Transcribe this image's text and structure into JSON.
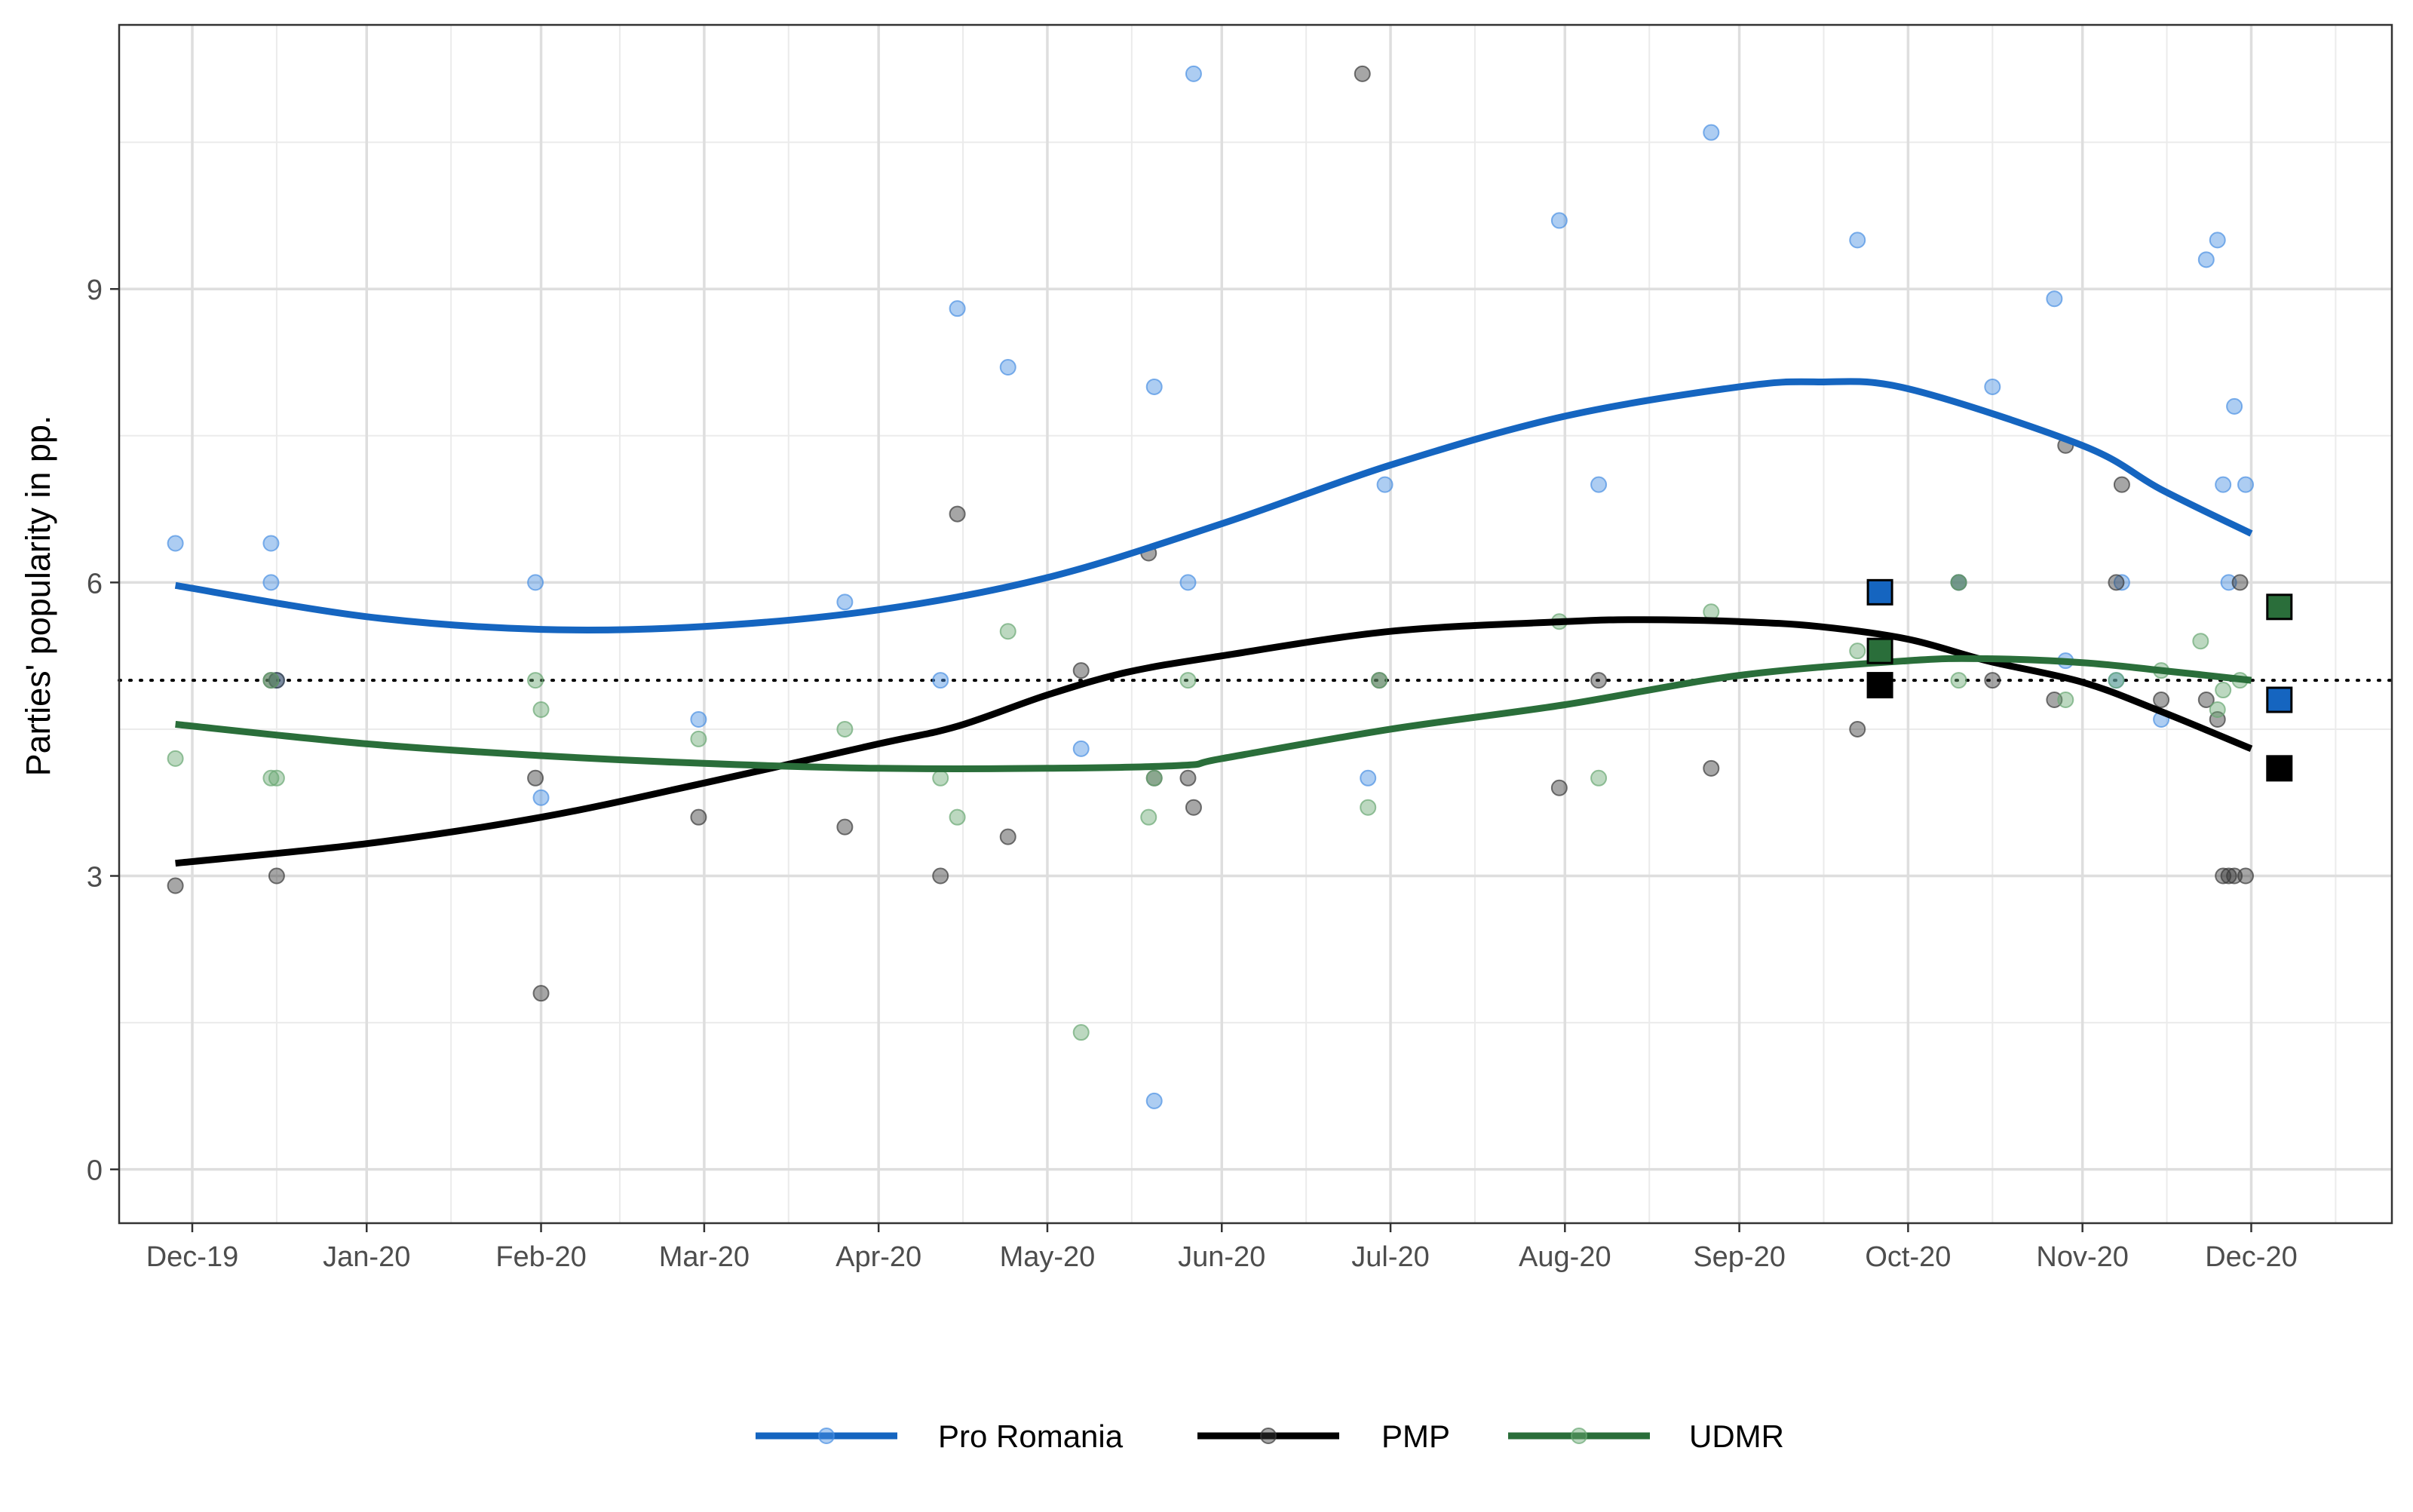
{
  "chart_data": {
    "type": "scatter",
    "title": "",
    "xlabel": "",
    "ylabel": "Parties' popularity in pp.",
    "x_ticks": [
      "Dec-19",
      "Jan-20",
      "Feb-20",
      "Mar-20",
      "Apr-20",
      "May-20",
      "Jun-20",
      "Jul-20",
      "Aug-20",
      "Sep-20",
      "Oct-20",
      "Nov-20",
      "Dec-20"
    ],
    "y_ticks": [
      0,
      3,
      6,
      9
    ],
    "xlim": [
      "2019-11-18",
      "2020-12-26"
    ],
    "ylim": [
      -0.55,
      11.7
    ],
    "grid": true,
    "legend_position": "bottom",
    "threshold_line": 5,
    "series": [
      {
        "name": "Pro Romania",
        "color": "#1565c0",
        "point_color": "#4a90e2",
        "points": [
          [
            "2019-11-28",
            6.4
          ],
          [
            "2019-12-15",
            6.0
          ],
          [
            "2019-12-15",
            6.4
          ],
          [
            "2019-12-16",
            5.0
          ],
          [
            "2020-01-31",
            6.0
          ],
          [
            "2020-02-01",
            3.8
          ],
          [
            "2020-02-29",
            4.6
          ],
          [
            "2020-03-26",
            5.8
          ],
          [
            "2020-04-12",
            5.0
          ],
          [
            "2020-04-15",
            8.8
          ],
          [
            "2020-04-24",
            8.2
          ],
          [
            "2020-05-07",
            4.3
          ],
          [
            "2020-05-20",
            8.0
          ],
          [
            "2020-05-20",
            0.7
          ],
          [
            "2020-05-26",
            6.0
          ],
          [
            "2020-05-27",
            11.2
          ],
          [
            "2020-06-27",
            4.0
          ],
          [
            "2020-06-30",
            7.0
          ],
          [
            "2020-07-31",
            9.7
          ],
          [
            "2020-08-07",
            7.0
          ],
          [
            "2020-08-27",
            10.6
          ],
          [
            "2020-09-22",
            9.5
          ],
          [
            "2020-10-10",
            6.0
          ],
          [
            "2020-10-16",
            8.0
          ],
          [
            "2020-10-27",
            8.9
          ],
          [
            "2020-10-29",
            5.2
          ],
          [
            "2020-11-07",
            5.0
          ],
          [
            "2020-11-08",
            6.0
          ],
          [
            "2020-11-15",
            4.6
          ],
          [
            "2020-11-23",
            9.3
          ],
          [
            "2020-11-25",
            9.5
          ],
          [
            "2020-11-26",
            7.0
          ],
          [
            "2020-11-27",
            6.0
          ],
          [
            "2020-11-28",
            7.8
          ],
          [
            "2020-11-30",
            7.0
          ]
        ],
        "trend": [
          [
            "2019-11-28",
            5.97
          ],
          [
            "2020-01-01",
            5.65
          ],
          [
            "2020-02-01",
            5.52
          ],
          [
            "2020-03-01",
            5.55
          ],
          [
            "2020-04-01",
            5.72
          ],
          [
            "2020-05-01",
            6.05
          ],
          [
            "2020-06-01",
            6.6
          ],
          [
            "2020-07-01",
            7.2
          ],
          [
            "2020-08-01",
            7.7
          ],
          [
            "2020-09-01",
            8.0
          ],
          [
            "2020-09-15",
            8.05
          ],
          [
            "2020-10-01",
            7.98
          ],
          [
            "2020-11-01",
            7.4
          ],
          [
            "2020-11-15",
            6.95
          ],
          [
            "2020-12-01",
            6.5
          ]
        ],
        "marker": [
          "2020-09-26",
          5.9
        ]
      },
      {
        "name": "PMP",
        "color": "#000000",
        "point_color": "#3a3a3a",
        "points": [
          [
            "2019-11-28",
            2.9
          ],
          [
            "2019-12-15",
            5.0
          ],
          [
            "2019-12-16",
            3.0
          ],
          [
            "2019-12-16",
            5.0
          ],
          [
            "2020-01-31",
            4.0
          ],
          [
            "2020-02-01",
            1.8
          ],
          [
            "2020-02-29",
            3.6
          ],
          [
            "2020-03-26",
            3.5
          ],
          [
            "2020-04-12",
            3.0
          ],
          [
            "2020-04-15",
            6.7
          ],
          [
            "2020-04-24",
            3.4
          ],
          [
            "2020-05-07",
            5.1
          ],
          [
            "2020-05-19",
            6.3
          ],
          [
            "2020-05-20",
            4.0
          ],
          [
            "2020-05-26",
            4.0
          ],
          [
            "2020-05-27",
            3.7
          ],
          [
            "2020-06-26",
            11.2
          ],
          [
            "2020-06-29",
            5.0
          ],
          [
            "2020-07-31",
            3.9
          ],
          [
            "2020-08-07",
            5.0
          ],
          [
            "2020-08-27",
            4.1
          ],
          [
            "2020-09-22",
            4.5
          ],
          [
            "2020-10-10",
            6.0
          ],
          [
            "2020-10-16",
            5.0
          ],
          [
            "2020-10-27",
            4.8
          ],
          [
            "2020-10-29",
            7.4
          ],
          [
            "2020-11-07",
            6.0
          ],
          [
            "2020-11-08",
            7.0
          ],
          [
            "2020-11-15",
            4.8
          ],
          [
            "2020-11-23",
            4.8
          ],
          [
            "2020-11-25",
            4.6
          ],
          [
            "2020-11-26",
            3.0
          ],
          [
            "2020-11-27",
            3.0
          ],
          [
            "2020-11-28",
            3.0
          ],
          [
            "2020-11-29",
            6.0
          ],
          [
            "2020-11-30",
            3.0
          ]
        ],
        "trend": [
          [
            "2019-11-28",
            3.13
          ],
          [
            "2020-01-01",
            3.33
          ],
          [
            "2020-02-01",
            3.6
          ],
          [
            "2020-03-01",
            3.95
          ],
          [
            "2020-04-01",
            4.35
          ],
          [
            "2020-04-15",
            4.53
          ],
          [
            "2020-05-01",
            4.85
          ],
          [
            "2020-05-15",
            5.08
          ],
          [
            "2020-06-01",
            5.25
          ],
          [
            "2020-07-01",
            5.5
          ],
          [
            "2020-08-01",
            5.6
          ],
          [
            "2020-08-15",
            5.62
          ],
          [
            "2020-09-01",
            5.6
          ],
          [
            "2020-09-15",
            5.55
          ],
          [
            "2020-10-01",
            5.42
          ],
          [
            "2020-10-15",
            5.2
          ],
          [
            "2020-11-01",
            4.98
          ],
          [
            "2020-11-15",
            4.68
          ],
          [
            "2020-12-01",
            4.3
          ]
        ],
        "marker": [
          "2020-09-26",
          4.95
        ]
      },
      {
        "name": "UDMR",
        "color": "#2a6e3a",
        "point_color": "#6aa874",
        "points": [
          [
            "2019-11-28",
            4.2
          ],
          [
            "2019-12-15",
            4.0
          ],
          [
            "2019-12-15",
            5.0
          ],
          [
            "2019-12-16",
            4.0
          ],
          [
            "2020-01-31",
            5.0
          ],
          [
            "2020-02-01",
            4.7
          ],
          [
            "2020-02-29",
            4.4
          ],
          [
            "2020-03-26",
            4.5
          ],
          [
            "2020-04-12",
            4.0
          ],
          [
            "2020-04-15",
            3.6
          ],
          [
            "2020-04-24",
            5.5
          ],
          [
            "2020-05-07",
            1.4
          ],
          [
            "2020-05-19",
            3.6
          ],
          [
            "2020-05-20",
            4.0
          ],
          [
            "2020-05-26",
            5.0
          ],
          [
            "2020-06-27",
            3.7
          ],
          [
            "2020-06-29",
            5.0
          ],
          [
            "2020-07-31",
            5.6
          ],
          [
            "2020-08-07",
            4.0
          ],
          [
            "2020-08-27",
            5.7
          ],
          [
            "2020-09-22",
            5.3
          ],
          [
            "2020-10-10",
            6.0
          ],
          [
            "2020-10-10",
            5.0
          ],
          [
            "2020-10-29",
            4.8
          ],
          [
            "2020-11-07",
            5.0
          ],
          [
            "2020-11-15",
            5.1
          ],
          [
            "2020-11-22",
            5.4
          ],
          [
            "2020-11-25",
            4.7
          ],
          [
            "2020-11-26",
            4.9
          ],
          [
            "2020-11-29",
            5.0
          ]
        ],
        "trend": [
          [
            "2019-11-28",
            4.55
          ],
          [
            "2020-01-01",
            4.35
          ],
          [
            "2020-02-01",
            4.23
          ],
          [
            "2020-03-01",
            4.15
          ],
          [
            "2020-04-01",
            4.1
          ],
          [
            "2020-05-01",
            4.1
          ],
          [
            "2020-05-25",
            4.13
          ],
          [
            "2020-06-01",
            4.2
          ],
          [
            "2020-07-01",
            4.5
          ],
          [
            "2020-08-01",
            4.75
          ],
          [
            "2020-09-01",
            5.05
          ],
          [
            "2020-10-01",
            5.2
          ],
          [
            "2020-10-15",
            5.22
          ],
          [
            "2020-11-01",
            5.18
          ],
          [
            "2020-11-15",
            5.1
          ],
          [
            "2020-12-01",
            5.0
          ]
        ],
        "marker": [
          "2020-09-26",
          5.3
        ]
      }
    ],
    "final_markers": [
      {
        "series": "UDMR",
        "x": "2020-12-06",
        "y": 5.75
      },
      {
        "series": "Pro Romania",
        "x": "2020-12-06",
        "y": 4.8
      },
      {
        "series": "PMP",
        "x": "2020-12-06",
        "y": 4.1
      }
    ]
  }
}
